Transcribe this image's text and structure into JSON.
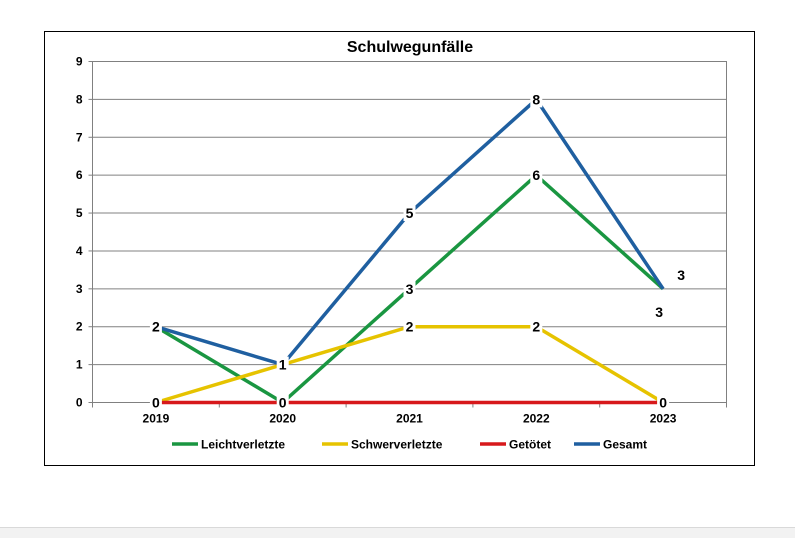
{
  "chart_data": {
    "type": "line",
    "title": "Schulwegunfälle",
    "xlabel": "",
    "ylabel": "",
    "categories": [
      "2019",
      "2020",
      "2021",
      "2022",
      "2023"
    ],
    "ylim": [
      0,
      9
    ],
    "yticks": [
      0,
      1,
      2,
      3,
      4,
      5,
      6,
      7,
      8,
      9
    ],
    "grid": true,
    "legend_position": "bottom",
    "series": [
      {
        "name": "Leichtverletzte",
        "color": "#1a9641",
        "values": [
          2,
          0,
          3,
          6,
          3
        ]
      },
      {
        "name": "Schwerverletzte",
        "color": "#e6c300",
        "values": [
          0,
          1,
          2,
          2,
          0
        ]
      },
      {
        "name": "Getötet",
        "color": "#d7191c",
        "values": [
          0,
          0,
          0,
          0,
          0
        ]
      },
      {
        "name": "Gesamt",
        "color": "#1f5fa0",
        "values": [
          2,
          1,
          5,
          8,
          3
        ]
      }
    ],
    "data_labels": [
      {
        "series": "Gesamt",
        "category": "2019",
        "text": "2"
      },
      {
        "series": "Gesamt",
        "category": "2020",
        "text": "1"
      },
      {
        "series": "Gesamt",
        "category": "2021",
        "text": "5"
      },
      {
        "series": "Gesamt",
        "category": "2022",
        "text": "8"
      },
      {
        "series": "Gesamt",
        "category": "2023",
        "text": "3"
      },
      {
        "series": "Leichtverletzte",
        "category": "2020",
        "text": "0"
      },
      {
        "series": "Leichtverletzte",
        "category": "2021",
        "text": "3"
      },
      {
        "series": "Leichtverletzte",
        "category": "2022",
        "text": "6"
      },
      {
        "series": "Leichtverletzte",
        "category": "2023",
        "text": "3"
      },
      {
        "series": "Schwerverletzte",
        "category": "2019",
        "text": "0"
      },
      {
        "series": "Schwerverletzte",
        "category": "2021",
        "text": "2"
      },
      {
        "series": "Schwerverletzte",
        "category": "2022",
        "text": "2"
      },
      {
        "series": "Schwerverletzte",
        "category": "2023",
        "text": "0"
      }
    ]
  }
}
